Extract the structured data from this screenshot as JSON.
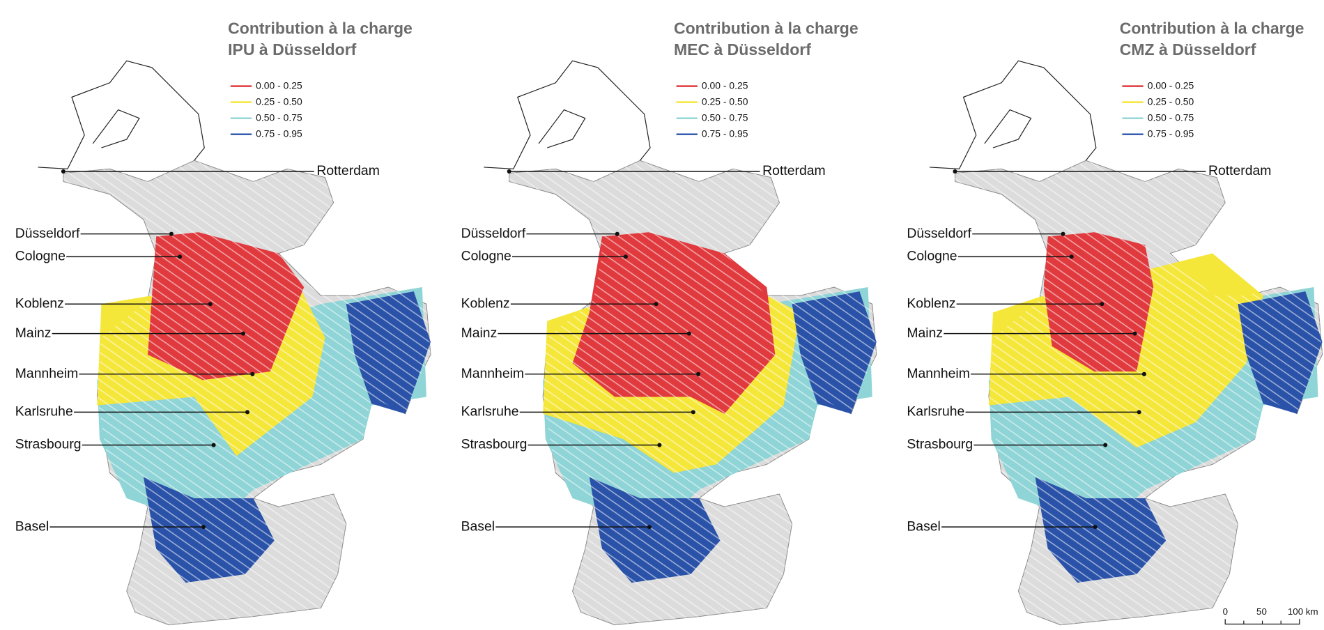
{
  "panels": [
    {
      "title": [
        "Contribution à la charge",
        "IPU à Düsseldorf"
      ]
    },
    {
      "title": [
        "Contribution à la charge",
        "MEC à Düsseldorf"
      ]
    },
    {
      "title": [
        "Contribution à la charge",
        "CMZ à Düsseldorf"
      ]
    }
  ],
  "legend": [
    {
      "label": "0.00 - 0.25",
      "color": "#e03a3e"
    },
    {
      "label": "0.25 - 0.50",
      "color": "#f5e63a"
    },
    {
      "label": "0.50 - 0.75",
      "color": "#8fd4d6"
    },
    {
      "label": "0.75 - 0.95",
      "color": "#2a52a8"
    }
  ],
  "cities": [
    "Rotterdam",
    "Düsseldorf",
    "Cologne",
    "Koblenz",
    "Mainz",
    "Mannheim",
    "Karlsruhe",
    "Strasbourg",
    "Basel"
  ],
  "scale_bar": {
    "labels": [
      "0",
      "50",
      "100 km"
    ]
  }
}
